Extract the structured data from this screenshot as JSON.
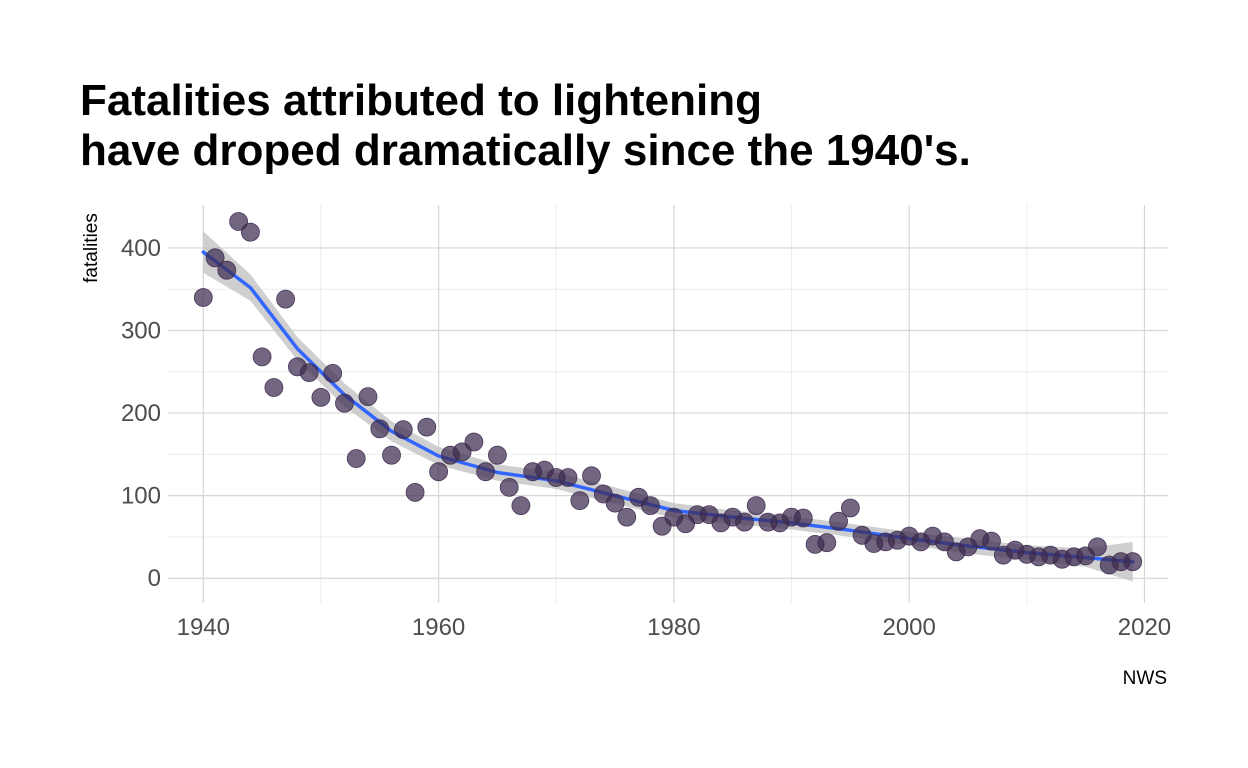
{
  "chart_data": {
    "type": "scatter",
    "title_lines": [
      "Fatalities attributed to lightening",
      "have droped dramatically since the 1940's."
    ],
    "ylabel": "fatalities",
    "xlabel": "",
    "caption": "NWS",
    "xlim": [
      1937,
      2022
    ],
    "ylim": [
      -30,
      452
    ],
    "x_ticks": [
      1940,
      1960,
      1980,
      2000,
      2020
    ],
    "y_ticks": [
      0,
      100,
      200,
      300,
      400
    ],
    "x_minor": [
      1950,
      1970,
      1990,
      2010
    ],
    "y_minor": [
      50,
      150,
      250,
      350
    ],
    "grid": true,
    "legend": "none",
    "point_color": "#3d2b4f",
    "trend_color": "#3366ff",
    "band_color": "#bfbfbf",
    "points": [
      {
        "x": 1940,
        "y": 340
      },
      {
        "x": 1941,
        "y": 388
      },
      {
        "x": 1942,
        "y": 373
      },
      {
        "x": 1943,
        "y": 432
      },
      {
        "x": 1944,
        "y": 419
      },
      {
        "x": 1945,
        "y": 268
      },
      {
        "x": 1946,
        "y": 231
      },
      {
        "x": 1947,
        "y": 338
      },
      {
        "x": 1948,
        "y": 256
      },
      {
        "x": 1949,
        "y": 249
      },
      {
        "x": 1950,
        "y": 219
      },
      {
        "x": 1951,
        "y": 248
      },
      {
        "x": 1952,
        "y": 212
      },
      {
        "x": 1953,
        "y": 145
      },
      {
        "x": 1954,
        "y": 220
      },
      {
        "x": 1955,
        "y": 181
      },
      {
        "x": 1956,
        "y": 149
      },
      {
        "x": 1957,
        "y": 180
      },
      {
        "x": 1958,
        "y": 104
      },
      {
        "x": 1959,
        "y": 183
      },
      {
        "x": 1960,
        "y": 129
      },
      {
        "x": 1961,
        "y": 149
      },
      {
        "x": 1962,
        "y": 153
      },
      {
        "x": 1963,
        "y": 165
      },
      {
        "x": 1964,
        "y": 129
      },
      {
        "x": 1965,
        "y": 149
      },
      {
        "x": 1966,
        "y": 110
      },
      {
        "x": 1967,
        "y": 88
      },
      {
        "x": 1968,
        "y": 129
      },
      {
        "x": 1969,
        "y": 131
      },
      {
        "x": 1970,
        "y": 122
      },
      {
        "x": 1971,
        "y": 122
      },
      {
        "x": 1972,
        "y": 94
      },
      {
        "x": 1973,
        "y": 124
      },
      {
        "x": 1974,
        "y": 102
      },
      {
        "x": 1975,
        "y": 91
      },
      {
        "x": 1976,
        "y": 74
      },
      {
        "x": 1977,
        "y": 98
      },
      {
        "x": 1978,
        "y": 88
      },
      {
        "x": 1979,
        "y": 63
      },
      {
        "x": 1980,
        "y": 74
      },
      {
        "x": 1981,
        "y": 66
      },
      {
        "x": 1982,
        "y": 77
      },
      {
        "x": 1983,
        "y": 77
      },
      {
        "x": 1984,
        "y": 67
      },
      {
        "x": 1985,
        "y": 74
      },
      {
        "x": 1986,
        "y": 68
      },
      {
        "x": 1987,
        "y": 88
      },
      {
        "x": 1988,
        "y": 68
      },
      {
        "x": 1989,
        "y": 67
      },
      {
        "x": 1990,
        "y": 74
      },
      {
        "x": 1991,
        "y": 73
      },
      {
        "x": 1992,
        "y": 41
      },
      {
        "x": 1993,
        "y": 43
      },
      {
        "x": 1994,
        "y": 69
      },
      {
        "x": 1995,
        "y": 85
      },
      {
        "x": 1996,
        "y": 52
      },
      {
        "x": 1997,
        "y": 42
      },
      {
        "x": 1998,
        "y": 44
      },
      {
        "x": 1999,
        "y": 46
      },
      {
        "x": 2000,
        "y": 51
      },
      {
        "x": 2001,
        "y": 44
      },
      {
        "x": 2002,
        "y": 51
      },
      {
        "x": 2003,
        "y": 44
      },
      {
        "x": 2004,
        "y": 32
      },
      {
        "x": 2005,
        "y": 38
      },
      {
        "x": 2006,
        "y": 48
      },
      {
        "x": 2007,
        "y": 45
      },
      {
        "x": 2008,
        "y": 28
      },
      {
        "x": 2009,
        "y": 34
      },
      {
        "x": 2010,
        "y": 29
      },
      {
        "x": 2011,
        "y": 26
      },
      {
        "x": 2012,
        "y": 28
      },
      {
        "x": 2013,
        "y": 23
      },
      {
        "x": 2014,
        "y": 26
      },
      {
        "x": 2015,
        "y": 27
      },
      {
        "x": 2016,
        "y": 38
      },
      {
        "x": 2017,
        "y": 16
      },
      {
        "x": 2018,
        "y": 20
      },
      {
        "x": 2019,
        "y": 20
      }
    ],
    "trend": [
      {
        "x": 1940,
        "y": 395
      },
      {
        "x": 1944,
        "y": 352
      },
      {
        "x": 1948,
        "y": 278
      },
      {
        "x": 1952,
        "y": 222
      },
      {
        "x": 1956,
        "y": 178
      },
      {
        "x": 1960,
        "y": 148
      },
      {
        "x": 1965,
        "y": 128
      },
      {
        "x": 1970,
        "y": 118
      },
      {
        "x": 1975,
        "y": 100
      },
      {
        "x": 1980,
        "y": 82
      },
      {
        "x": 1985,
        "y": 74
      },
      {
        "x": 1990,
        "y": 67
      },
      {
        "x": 1995,
        "y": 58
      },
      {
        "x": 2000,
        "y": 48
      },
      {
        "x": 2005,
        "y": 39
      },
      {
        "x": 2010,
        "y": 31
      },
      {
        "x": 2015,
        "y": 25
      },
      {
        "x": 2019,
        "y": 20
      }
    ],
    "band_upper": [
      {
        "x": 1940,
        "y": 420
      },
      {
        "x": 1944,
        "y": 368
      },
      {
        "x": 1948,
        "y": 292
      },
      {
        "x": 1952,
        "y": 236
      },
      {
        "x": 1956,
        "y": 190
      },
      {
        "x": 1960,
        "y": 159
      },
      {
        "x": 1965,
        "y": 138
      },
      {
        "x": 1970,
        "y": 128
      },
      {
        "x": 1975,
        "y": 110
      },
      {
        "x": 1980,
        "y": 91
      },
      {
        "x": 1985,
        "y": 82
      },
      {
        "x": 1990,
        "y": 75
      },
      {
        "x": 1995,
        "y": 66
      },
      {
        "x": 2000,
        "y": 56
      },
      {
        "x": 2005,
        "y": 48
      },
      {
        "x": 2010,
        "y": 40
      },
      {
        "x": 2015,
        "y": 36
      },
      {
        "x": 2019,
        "y": 44
      }
    ],
    "band_lower": [
      {
        "x": 1940,
        "y": 370
      },
      {
        "x": 1944,
        "y": 336
      },
      {
        "x": 1948,
        "y": 264
      },
      {
        "x": 1952,
        "y": 208
      },
      {
        "x": 1956,
        "y": 166
      },
      {
        "x": 1960,
        "y": 137
      },
      {
        "x": 1965,
        "y": 118
      },
      {
        "x": 1970,
        "y": 108
      },
      {
        "x": 1975,
        "y": 90
      },
      {
        "x": 1980,
        "y": 73
      },
      {
        "x": 1985,
        "y": 66
      },
      {
        "x": 1990,
        "y": 59
      },
      {
        "x": 1995,
        "y": 50
      },
      {
        "x": 2000,
        "y": 40
      },
      {
        "x": 2005,
        "y": 30
      },
      {
        "x": 2010,
        "y": 22
      },
      {
        "x": 2015,
        "y": 14
      },
      {
        "x": 2019,
        "y": -4
      }
    ]
  }
}
